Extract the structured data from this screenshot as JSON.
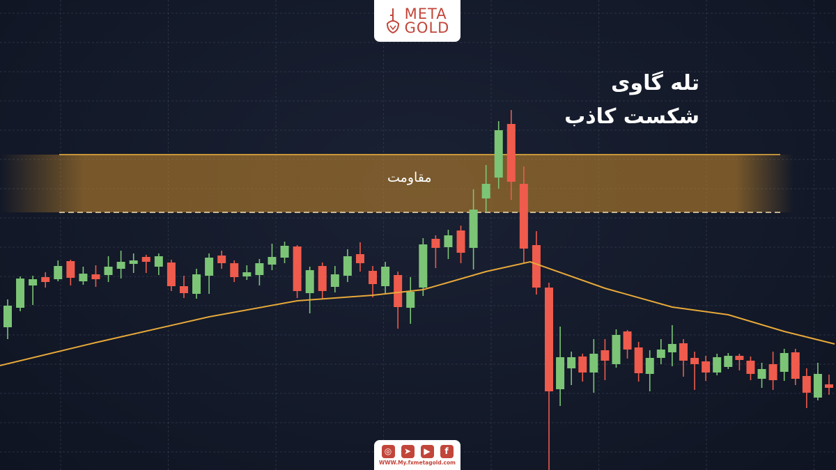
{
  "brand": {
    "logo_line1": "META",
    "logo_line2": "GOLD",
    "website": "WWW.My.fxmetagold.com",
    "social_icons": [
      "instagram-icon",
      "telegram-icon",
      "youtube-icon",
      "facebook-icon"
    ],
    "color": "#c2453a"
  },
  "chart_data": {
    "type": "candlestick",
    "title_lines": [
      "تله گاوی",
      "شکست کاذب"
    ],
    "annotations": [
      {
        "text": "مقاومت",
        "type": "resistance-zone",
        "range": [
          395,
          478
        ]
      }
    ],
    "xlabel": "",
    "ylabel": "",
    "ylim": [
      0,
      700
    ],
    "grid": true,
    "colors": {
      "up": "#7cc576",
      "down": "#ef5b4c",
      "zone": "#c98a2a",
      "moving_average": "#e8a93a",
      "background": "#131a2a"
    },
    "candles": [
      [
        230,
        261,
        270,
        213
      ],
      [
        258,
        300,
        303,
        253
      ],
      [
        290,
        299,
        304,
        262
      ],
      [
        302,
        295,
        309,
        287
      ],
      [
        299,
        318,
        326,
        296
      ],
      [
        325,
        301,
        327,
        290
      ],
      [
        296,
        307,
        317,
        291
      ],
      [
        306,
        299,
        319,
        288
      ],
      [
        305,
        317,
        332,
        295
      ],
      [
        314,
        324,
        340,
        300
      ],
      [
        321,
        326,
        336,
        308
      ],
      [
        331,
        324,
        334,
        308
      ],
      [
        317,
        332,
        336,
        305
      ],
      [
        323,
        289,
        327,
        282
      ],
      [
        289,
        279,
        304,
        272
      ],
      [
        278,
        306,
        314,
        271
      ],
      [
        304,
        330,
        336,
        278
      ],
      [
        333,
        322,
        340,
        314
      ],
      [
        322,
        302,
        326,
        295
      ],
      [
        303,
        309,
        319,
        298
      ],
      [
        305,
        322,
        328,
        290
      ],
      [
        320,
        331,
        350,
        312
      ],
      [
        330,
        347,
        353,
        322
      ],
      [
        346,
        282,
        348,
        272
      ],
      [
        279,
        312,
        317,
        250
      ],
      [
        318,
        282,
        323,
        270
      ],
      [
        288,
        306,
        318,
        280
      ],
      [
        304,
        332,
        342,
        295
      ],
      [
        335,
        322,
        352,
        310
      ],
      [
        311,
        292,
        318,
        273
      ],
      [
        289,
        317,
        324,
        277
      ],
      [
        305,
        259,
        310,
        228
      ],
      [
        258,
        281,
        302,
        235
      ],
      [
        287,
        349,
        358,
        275
      ],
      [
        357,
        344,
        362,
        315
      ],
      [
        345,
        362,
        370,
        328
      ],
      [
        369,
        337,
        376,
        322
      ],
      [
        344,
        399,
        428,
        313
      ],
      [
        415,
        436,
        463,
        395
      ],
      [
        445,
        513,
        526,
        429
      ],
      [
        522,
        439,
        542,
        413
      ],
      [
        436,
        343,
        461,
        323
      ],
      [
        348,
        287,
        368,
        277
      ],
      [
        287,
        138,
        294,
        20
      ],
      [
        141,
        187,
        231,
        117
      ],
      [
        171,
        187,
        195,
        147
      ],
      [
        188,
        165,
        192,
        152
      ],
      [
        165,
        192,
        213,
        136
      ],
      [
        197,
        182,
        213,
        154
      ],
      [
        177,
        219,
        227,
        172
      ],
      [
        224,
        198,
        226,
        185
      ],
      [
        201,
        164,
        209,
        152
      ],
      [
        163,
        186,
        197,
        138
      ],
      [
        186,
        198,
        213,
        177
      ],
      [
        194,
        206,
        233,
        174
      ],
      [
        207,
        182,
        213,
        159
      ],
      [
        186,
        177,
        195,
        140
      ],
      [
        181,
        165,
        189,
        153
      ],
      [
        165,
        187,
        192,
        161
      ],
      [
        173,
        189,
        193,
        170
      ],
      [
        189,
        183,
        192,
        168
      ],
      [
        182,
        163,
        188,
        154
      ],
      [
        156,
        170,
        179,
        143
      ],
      [
        177,
        154,
        195,
        140
      ],
      [
        166,
        193,
        199,
        153
      ],
      [
        194,
        156,
        199,
        147
      ],
      [
        160,
        136,
        171,
        114
      ],
      [
        129,
        163,
        179,
        125
      ],
      [
        148,
        143,
        162,
        133
      ]
    ],
    "candle_fields": [
      "open",
      "close",
      "high",
      "low"
    ],
    "moving_average": [
      [
        -0.6,
        175
      ],
      [
        7,
        208
      ],
      [
        16,
        245
      ],
      [
        23,
        268
      ],
      [
        29,
        276
      ],
      [
        33,
        284
      ],
      [
        38,
        310
      ],
      [
        41.5,
        324
      ],
      [
        48,
        286
      ],
      [
        54,
        259
      ],
      [
        59,
        248
      ],
      [
        64,
        224
      ],
      [
        68.5,
        206
      ]
    ]
  }
}
